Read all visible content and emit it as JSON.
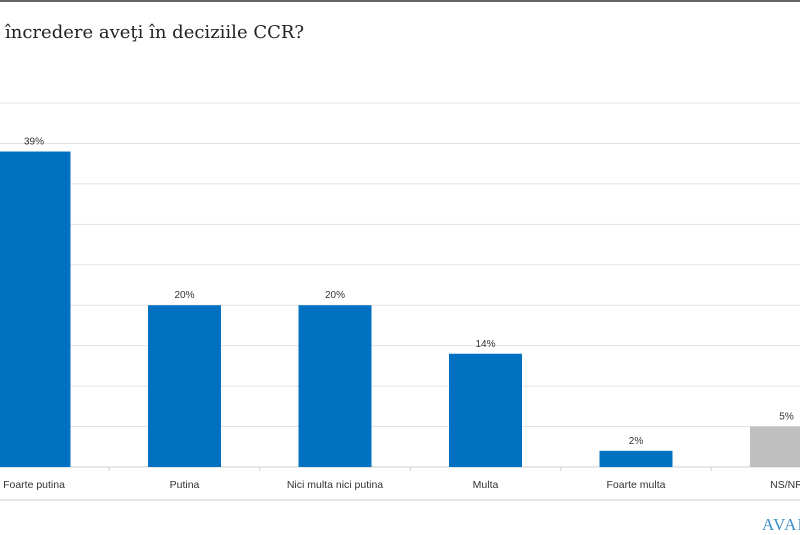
{
  "header": {
    "title": "încredere aveţi în deciziile CCR?"
  },
  "logo": {
    "text": "AVAN"
  },
  "chart_data": {
    "type": "bar",
    "title": "",
    "xlabel": "",
    "ylabel": "",
    "categories": [
      "Foarte putina",
      "Putina",
      "Nici multa nici putina",
      "Multa",
      "Foarte multa",
      "NS/NR"
    ],
    "values": [
      39,
      20,
      20,
      14,
      2,
      5
    ],
    "data_labels": [
      "39%",
      "20%",
      "20%",
      "14%",
      "2%",
      "5%"
    ],
    "bar_colors": [
      "#0070c0",
      "#0070c0",
      "#0070c0",
      "#0070c0",
      "#0070c0",
      "#bfbfbf"
    ],
    "ylim": [
      0,
      45
    ],
    "grid": true,
    "gridline_step": 5,
    "legend": "none"
  }
}
